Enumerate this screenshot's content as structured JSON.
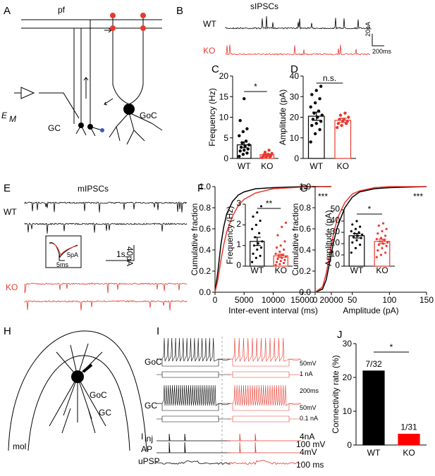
{
  "labels": {
    "a": "A",
    "pf": "pf",
    "em": "E",
    "em_sub": "M",
    "a_gc": "GC",
    "a_goc": "GoC",
    "b": "B",
    "sipscs": "sIPSCs",
    "b_wt": "WT",
    "b_ko": "KO",
    "b_scale_y": "20pA",
    "b_scale_x": "200ms",
    "c": "C",
    "d": "D",
    "e": "E",
    "mipscs": "mIPSCs",
    "e_wt": "WT",
    "e_ko": "KO",
    "e_in_y": "5pA",
    "e_in_x": "5ms",
    "e_scale_x": "1s",
    "e_scale_y": "40pA",
    "f": "F",
    "g": "G",
    "h": "H",
    "h_goc": "GoC",
    "h_gc": "GC",
    "h_mol": "mol",
    "i": "I",
    "i_goc": "GoC",
    "i_gc": "GC",
    "i_goc_v": "50mV",
    "i_goc_i": "1 nA",
    "i_t": "200ms",
    "i_gc_v": "50mV",
    "i_gc_i": "0.1 nA",
    "i_inj": "I",
    "i_inj_sub": "inj",
    "i_ap": "AP",
    "i_upsp": "uPSP",
    "i_s1": "4nA",
    "i_s2": "100 mV",
    "i_s3": "4mV",
    "i_s4": "100 ms",
    "j": "J"
  },
  "chart_data": [
    {
      "type": "bar",
      "ylabel": "Frequency (Hz)",
      "categories": [
        "WT",
        "KO"
      ],
      "values": [
        3.3,
        0.9
      ],
      "errors": [
        0.7,
        0.2
      ],
      "colors": [
        "#000000",
        "#e8392f"
      ],
      "bar_style": "outline",
      "points": [
        [
          0.5,
          1.0,
          1.3,
          1.8,
          2.0,
          2.3,
          2.7,
          3.0,
          3.3,
          3.8,
          4.2,
          5.5,
          6.5,
          7.2,
          9.2,
          14.5
        ],
        [
          0.2,
          0.3,
          0.4,
          0.5,
          0.6,
          0.7,
          0.9,
          1.0,
          1.2,
          1.5,
          2.0
        ]
      ],
      "ylim": [
        0,
        20
      ],
      "yticks": [
        0,
        5,
        10,
        15,
        20
      ],
      "significance": "*"
    },
    {
      "type": "bar",
      "ylabel": "Amplitude (pA)",
      "categories": [
        "WT",
        "KO"
      ],
      "values": [
        20.5,
        18.5
      ],
      "errors": [
        2,
        1
      ],
      "colors": [
        "#000000",
        "#e8392f"
      ],
      "bar_style": "outline",
      "points": [
        [
          8,
          12,
          14,
          16,
          17,
          18,
          19,
          20,
          21,
          22,
          23,
          25,
          27,
          29,
          31,
          33,
          35
        ],
        [
          15,
          16,
          17,
          17,
          18,
          18,
          19,
          19,
          20,
          21,
          22
        ]
      ],
      "ylim": [
        0,
        40
      ],
      "yticks": [
        0,
        10,
        20,
        30,
        40
      ],
      "significance": "n.s."
    },
    {
      "type": "line",
      "xlabel": "Inter-event interval (ms)",
      "ylabel": "Cumulative fraction",
      "x": [
        0,
        500,
        1000,
        1500,
        2000,
        3000,
        4000,
        5000,
        7000,
        10000,
        15000,
        20000
      ],
      "series": [
        {
          "color": "#000000",
          "values": [
            0,
            0.2,
            0.45,
            0.62,
            0.74,
            0.86,
            0.92,
            0.95,
            0.98,
            0.99,
            1,
            1
          ]
        },
        {
          "color": "#e8392f",
          "values": [
            0,
            0.12,
            0.3,
            0.45,
            0.57,
            0.72,
            0.82,
            0.88,
            0.94,
            0.98,
            0.995,
            1
          ]
        }
      ],
      "xlim": [
        0,
        20000
      ],
      "xticks": [
        0,
        5000,
        10000,
        15000,
        20000
      ],
      "ylim": [
        0,
        1
      ],
      "yticks": [
        {
          "value": 0,
          "label": "0.0"
        },
        {
          "value": 0.2,
          "label": "0.2"
        },
        {
          "value": 0.4,
          "label": "0.4"
        },
        {
          "value": 0.6,
          "label": "0.6"
        },
        {
          "value": 0.8,
          "label": "0.8"
        },
        {
          "value": 1,
          "label": "1.0"
        }
      ],
      "significance": "***"
    },
    {
      "type": "bar",
      "ylabel": "Frequency (Hz)",
      "categories": [
        "WT",
        "KO"
      ],
      "values": [
        1.2,
        0.5
      ],
      "errors": [
        0.2,
        0.08
      ],
      "colors": [
        "#000000",
        "#e8392f"
      ],
      "bar_style": "outline",
      "points": [
        [
          0.2,
          0.4,
          0.5,
          0.6,
          0.8,
          0.9,
          1.0,
          1.1,
          1.2,
          1.4,
          1.6,
          1.8,
          2.0,
          2.2,
          2.4,
          2.6,
          2.9
        ],
        [
          0.05,
          0.1,
          0.15,
          0.2,
          0.25,
          0.3,
          0.35,
          0.4,
          0.45,
          0.5,
          0.55,
          0.6,
          0.7,
          0.8,
          0.9,
          1.0,
          1.2,
          1.5,
          1.9,
          2.1
        ]
      ],
      "ylim": [
        0,
        3
      ],
      "yticks": [
        0,
        1,
        2,
        3
      ],
      "significance": "**"
    },
    {
      "type": "line",
      "xlabel": "Amplitude (pA)",
      "ylabel": "Cumulative fraction",
      "x": [
        0,
        10,
        15,
        20,
        25,
        30,
        40,
        50,
        60,
        80,
        100,
        150
      ],
      "series": [
        {
          "color": "#000000",
          "values": [
            0,
            0.03,
            0.12,
            0.3,
            0.48,
            0.62,
            0.8,
            0.9,
            0.95,
            0.98,
            0.99,
            1
          ]
        },
        {
          "color": "#e8392f",
          "values": [
            0,
            0.05,
            0.18,
            0.38,
            0.56,
            0.7,
            0.85,
            0.93,
            0.96,
            0.99,
            1,
            1
          ]
        }
      ],
      "xlim": [
        0,
        150
      ],
      "xticks": [
        0,
        50,
        100,
        150
      ],
      "ylim": [
        0,
        1
      ],
      "yticks": [
        {
          "value": 0,
          "label": "0.0"
        },
        {
          "value": 0.2,
          "label": "0.2"
        },
        {
          "value": 0.4,
          "label": "0.4"
        },
        {
          "value": 0.6,
          "label": "0.6"
        },
        {
          "value": 0.8,
          "label": "0.8"
        },
        {
          "value": 1,
          "label": "1.0"
        }
      ],
      "significance": "***"
    },
    {
      "type": "bar",
      "ylabel": "Amplitude (pA)",
      "categories": [
        "WT",
        "KO"
      ],
      "values": [
        27,
        22
      ],
      "errors": [
        2,
        2
      ],
      "colors": [
        "#000000",
        "#e8392f"
      ],
      "bar_style": "outline",
      "points": [
        [
          12,
          16,
          19,
          21,
          23,
          25,
          26,
          27,
          28,
          29,
          30,
          31,
          33,
          35,
          37,
          40
        ],
        [
          8,
          10,
          12,
          14,
          16,
          18,
          19,
          20,
          21,
          22,
          23,
          24,
          25,
          27,
          29,
          31,
          33,
          36,
          38
        ]
      ],
      "ylim": [
        0,
        50
      ],
      "yticks": [
        0,
        10,
        20,
        30,
        40,
        50
      ],
      "significance": "*"
    },
    {
      "type": "bar",
      "ylabel": "Connectivity rate (%)",
      "categories": [
        "WT",
        "KO"
      ],
      "values": [
        21.9,
        3.2
      ],
      "colors": [
        "#000000",
        "#ff0000"
      ],
      "bar_style": "filled",
      "annotations": [
        "7/32",
        "1/31"
      ],
      "ylim": [
        0,
        30
      ],
      "yticks": [
        0,
        10,
        20,
        30
      ],
      "significance": "*"
    }
  ]
}
